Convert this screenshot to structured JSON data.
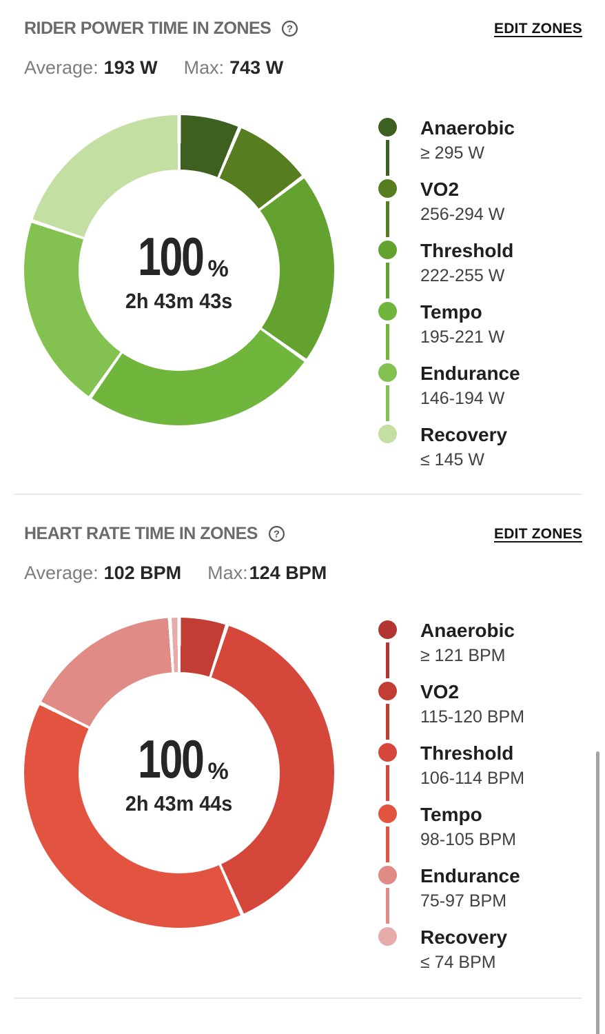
{
  "power_section": {
    "title": "RIDER POWER TIME IN ZONES",
    "help_icon": "question-mark-circle-icon",
    "edit_link": "EDIT ZONES",
    "average_label": "Average:",
    "average_value": "193 W",
    "max_label": "Max:",
    "max_value": "743 W",
    "center_percent": "100",
    "center_percent_sign": "%",
    "center_time": "2h 43m 43s"
  },
  "hr_section": {
    "title": "HEART RATE TIME IN ZONES",
    "help_icon": "question-mark-circle-icon",
    "edit_link": "EDIT ZONES",
    "average_label": "Average:",
    "average_value": "102 BPM",
    "max_label": "Max:",
    "max_value": "124 BPM",
    "center_percent": "100",
    "center_percent_sign": "%",
    "center_time": "2h 43m 44s"
  },
  "chart_data": [
    {
      "type": "pie",
      "subtype": "donut",
      "title": "RIDER POWER TIME IN ZONES",
      "center_label": "100%",
      "center_sublabel": "2h 43m 43s",
      "units": "W",
      "average": 193,
      "max": 743,
      "legend_position": "right",
      "zones": [
        {
          "name": "Anaerobic",
          "range": "≥ 295 W",
          "color": "#3d5f20",
          "start_deg": 0,
          "end_deg": 23,
          "percent_est": 6.4
        },
        {
          "name": "VO2",
          "range": "256-294 W",
          "color": "#567d20",
          "start_deg": 23,
          "end_deg": 53,
          "percent_est": 8.3
        },
        {
          "name": "Threshold",
          "range": "222-255 W",
          "color": "#63a22f",
          "start_deg": 53,
          "end_deg": 125.5,
          "percent_est": 20.1
        },
        {
          "name": "Tempo",
          "range": "195-221 W",
          "color": "#70b63c",
          "start_deg": 125.5,
          "end_deg": 215,
          "percent_est": 24.9
        },
        {
          "name": "Endurance",
          "range": "146-194 W",
          "color": "#83c251",
          "start_deg": 215,
          "end_deg": 288.5,
          "percent_est": 20.4
        },
        {
          "name": "Recovery",
          "range": "≤ 145 W",
          "color": "#c3dfa2",
          "start_deg": 288.5,
          "end_deg": 360,
          "percent_est": 19.9
        }
      ]
    },
    {
      "type": "pie",
      "subtype": "donut",
      "title": "HEART RATE TIME IN ZONES",
      "center_label": "100%",
      "center_sublabel": "2h 43m 44s",
      "units": "BPM",
      "average": 102,
      "max": 124,
      "legend_position": "right",
      "zones": [
        {
          "name": "Anaerobic",
          "range": "≥ 121 BPM",
          "color": "#b23531",
          "start_deg": 0,
          "end_deg": 0,
          "percent_est": 0
        },
        {
          "name": "VO2",
          "range": "115-120 BPM",
          "color": "#c23e34",
          "start_deg": 0,
          "end_deg": 18,
          "percent_est": 5.0
        },
        {
          "name": "Threshold",
          "range": "106-114 BPM",
          "color": "#d6473b",
          "start_deg": 18,
          "end_deg": 156,
          "percent_est": 38.3
        },
        {
          "name": "Tempo",
          "range": "98-105 BPM",
          "color": "#e25440",
          "start_deg": 156,
          "end_deg": 296.6,
          "percent_est": 39.1
        },
        {
          "name": "Endurance",
          "range": "75-97 BPM",
          "color": "#e08b85",
          "start_deg": 296.6,
          "end_deg": 356.5,
          "percent_est": 16.6
        },
        {
          "name": "Recovery",
          "range": "≤ 74 BPM",
          "color": "#e7aca9",
          "start_deg": 356.5,
          "end_deg": 360,
          "percent_est": 1.0
        }
      ]
    }
  ]
}
